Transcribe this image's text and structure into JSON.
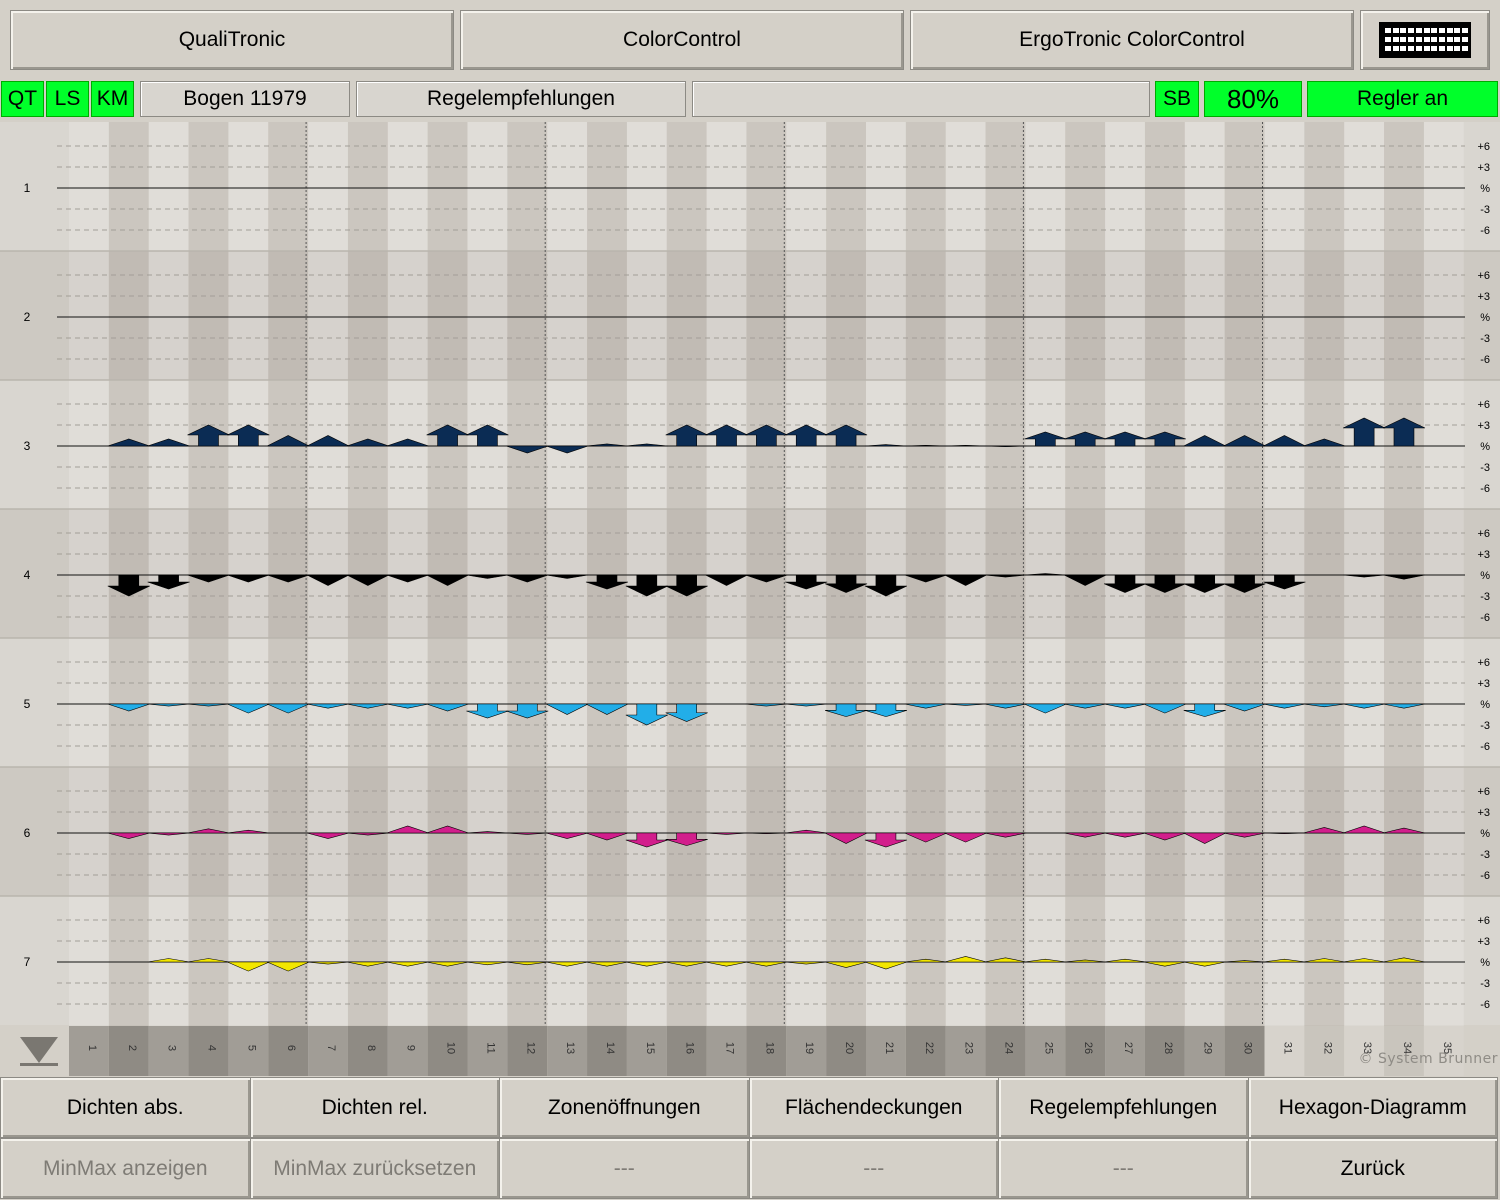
{
  "top_tabs": {
    "tab1": "QualiTronic",
    "tab2": "ColorControl",
    "tab3": "ErgoTronic ColorControl",
    "keyboard_icon": "keyboard-icon"
  },
  "status_bar": {
    "qt": "QT",
    "ls": "LS",
    "km": "KM",
    "sheet": "Bogen 11979",
    "mode": "Regelempfehlungen",
    "message": "",
    "sb": "SB",
    "percent": "80%",
    "controller": "Regler an"
  },
  "colors": {
    "green": "#00ff2a",
    "dark_blue": "#0b2c54",
    "black": "#000000",
    "cyan": "#22aee8",
    "magenta": "#d21e8c",
    "yellow": "#f2e600"
  },
  "chart_data": {
    "type": "bar",
    "scale_labels": [
      "+6",
      "+3",
      "%",
      "-3",
      "-6"
    ],
    "row_labels": [
      "1",
      "2",
      "3",
      "4",
      "5",
      "6",
      "7"
    ],
    "zones": [
      "1",
      "2",
      "3",
      "4",
      "5",
      "6",
      "7",
      "8",
      "9",
      "10",
      "11",
      "12",
      "13",
      "14",
      "15",
      "16",
      "17",
      "18",
      "19",
      "20",
      "21",
      "22",
      "23",
      "24",
      "25",
      "26",
      "27",
      "28",
      "29",
      "30",
      "31",
      "32",
      "33",
      "34",
      "35"
    ],
    "rows": [
      {
        "label": "1",
        "color": "none",
        "values": []
      },
      {
        "label": "2",
        "color": "none",
        "values": []
      },
      {
        "label": "3",
        "color": "#0b2c54",
        "values": [
          null,
          1,
          1,
          3,
          3,
          1.5,
          1.5,
          1,
          1,
          3,
          3,
          -1,
          -1,
          0.3,
          0.3,
          3,
          3,
          3,
          3,
          3,
          0.2,
          0.1,
          0.1,
          -0.1,
          2,
          2,
          2,
          2,
          1.5,
          1.5,
          1.5,
          1,
          4,
          4,
          null
        ]
      },
      {
        "label": "4",
        "color": "#000000",
        "values": [
          null,
          -3,
          -2,
          -1,
          -1,
          -1,
          -1.5,
          -1.5,
          -1,
          -1.5,
          -0.5,
          -1,
          -0.5,
          -2,
          -3,
          -3,
          -1.5,
          -1,
          -2,
          -2.5,
          -3,
          -1,
          -1.5,
          -0.3,
          0.2,
          -1.5,
          -2.5,
          -2.5,
          -2.5,
          -2.5,
          -2,
          0,
          -0.3,
          -0.6,
          null
        ]
      },
      {
        "label": "5",
        "color": "#22aee8",
        "values": [
          null,
          -1,
          -0.3,
          -0.3,
          -1.3,
          -1.3,
          -0.6,
          -0.6,
          -0.6,
          -1,
          -2,
          -2,
          -1.5,
          -1.5,
          -3,
          -2.5,
          0,
          -0.3,
          -0.3,
          -1.8,
          -1.8,
          -0.6,
          -0.2,
          -0.6,
          -1.3,
          -0.6,
          -0.6,
          -1.3,
          -1.8,
          -1,
          -0.6,
          -0.4,
          -0.6,
          -0.6,
          null
        ]
      },
      {
        "label": "6",
        "color": "#d21e8c",
        "values": [
          null,
          -0.8,
          -0.3,
          0.6,
          0.4,
          0,
          -0.8,
          -0.3,
          1,
          1,
          0.2,
          -0.2,
          -0.8,
          -1,
          -2,
          -1.8,
          -0.2,
          -0.1,
          0.4,
          -1.5,
          -2,
          -1.3,
          -1.3,
          -0.6,
          0,
          -0.6,
          -0.6,
          -1,
          -1.5,
          -0.6,
          -0.1,
          0.8,
          1,
          0.7,
          null
        ]
      },
      {
        "label": "7",
        "color": "#f2e600",
        "values": [
          null,
          0,
          0.5,
          0.5,
          -1.3,
          -1.3,
          -0.3,
          -0.6,
          -0.6,
          -0.6,
          -0.4,
          -0.4,
          -0.6,
          -0.6,
          -0.6,
          -0.6,
          -0.6,
          -0.6,
          -0.3,
          -0.8,
          -1,
          0.4,
          0.8,
          0.6,
          0.4,
          0.3,
          0.4,
          -0.6,
          -0.6,
          0.2,
          0.4,
          0.5,
          0.5,
          0.6,
          null
        ]
      }
    ]
  },
  "footer": {
    "copyright": "© System Brunner",
    "scroll_icon": "triangle-down-icon",
    "row1": [
      "Dichten abs.",
      "Dichten rel.",
      "Zonenöffnungen",
      "Flächendeckungen",
      "Regelempfehlungen",
      "Hexagon-Diagramm"
    ],
    "row2": [
      "MinMax anzeigen",
      "MinMax zurücksetzen",
      "---",
      "---",
      "---",
      "Zurück"
    ]
  }
}
